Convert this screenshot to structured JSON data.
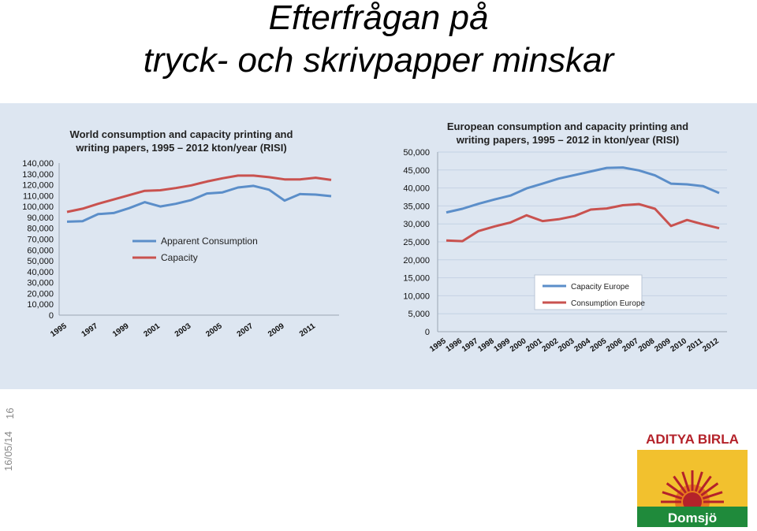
{
  "slide": {
    "title_line1": "Efterfrågan på",
    "title_line2": "tryck- och skrivpapper minskar",
    "date": "16/05/14",
    "page_number": "16"
  },
  "logo": {
    "brand": "ADITYA BIRLA",
    "sub": "Domsjö",
    "colors": {
      "gold": "#f2c12e",
      "red": "#b4222a",
      "orange": "#e87a1e",
      "green": "#1f8a3b"
    }
  },
  "colors": {
    "blue": "#5b8ec9",
    "red": "#c9524f",
    "panel": "#dde6f1"
  },
  "chart_data": [
    {
      "type": "line",
      "title_line1": "World consumption and capacity printing and",
      "title_line2": "writing papers, 1995 – 2012 kton/year (RISI)",
      "x": [
        1995,
        1996,
        1997,
        1998,
        1999,
        2000,
        2001,
        2002,
        2003,
        2004,
        2005,
        2006,
        2007,
        2008,
        2009,
        2010,
        2011,
        2012
      ],
      "ylim": [
        0,
        140000
      ],
      "yticks": [
        "0",
        "10,000",
        "20,000",
        "30,000",
        "40,000",
        "50,000",
        "60,000",
        "70,000",
        "80,000",
        "90,000",
        "100,000",
        "110,000",
        "120,000",
        "130,000",
        "140,000"
      ],
      "xticks": [
        "1995",
        "1997",
        "1999",
        "2001",
        "2003",
        "2005",
        "2007",
        "2009",
        "2011"
      ],
      "legend_position": "center",
      "series": [
        {
          "name": "Apparent Consumption",
          "color": "#5b8ec9",
          "values": [
            86000,
            86500,
            93000,
            94000,
            98500,
            104000,
            100000,
            102500,
            106000,
            112000,
            113000,
            117500,
            119000,
            115500,
            105500,
            111500,
            111000,
            109500
          ]
        },
        {
          "name": "Capacity",
          "color": "#c9524f",
          "values": [
            95000,
            98000,
            102500,
            106500,
            110500,
            114500,
            115000,
            117000,
            119500,
            123000,
            126000,
            128500,
            128500,
            127000,
            125000,
            125000,
            126500,
            124500
          ]
        }
      ]
    },
    {
      "type": "line",
      "title_line1": "European consumption and capacity printing and",
      "title_line2": "writing papers, 1995 – 2012 in kton/year (RISI)",
      "x": [
        1995,
        1996,
        1997,
        1998,
        1999,
        2000,
        2001,
        2002,
        2003,
        2004,
        2005,
        2006,
        2007,
        2008,
        2009,
        2010,
        2011,
        2012
      ],
      "xticks": [
        "1995",
        "1996",
        "1997",
        "1998",
        "1999",
        "2000",
        "2001",
        "2002",
        "2003",
        "2004",
        "2005",
        "2006",
        "2007",
        "2008",
        "2009",
        "2010",
        "2011",
        "2012"
      ],
      "ylim": [
        0,
        50000
      ],
      "yticks": [
        "0",
        "5,000",
        "10,000",
        "15,000",
        "20,000",
        "25,000",
        "30,000",
        "35,000",
        "40,000",
        "45,000",
        "50,000"
      ],
      "legend_position": "bottom-right",
      "series": [
        {
          "name": "Capacity Europe",
          "color": "#5b8ec9",
          "values": [
            33200,
            34200,
            35600,
            36800,
            37900,
            39900,
            41200,
            42600,
            43600,
            44600,
            45600,
            45700,
            44900,
            43500,
            41200,
            41000,
            40500,
            38600
          ]
        },
        {
          "name": "Consumption Europe",
          "color": "#c9524f",
          "values": [
            25400,
            25200,
            28000,
            29300,
            30400,
            32400,
            30800,
            31300,
            32200,
            34000,
            34300,
            35200,
            35500,
            34200,
            29400,
            31100,
            29900,
            28800
          ]
        }
      ]
    }
  ]
}
